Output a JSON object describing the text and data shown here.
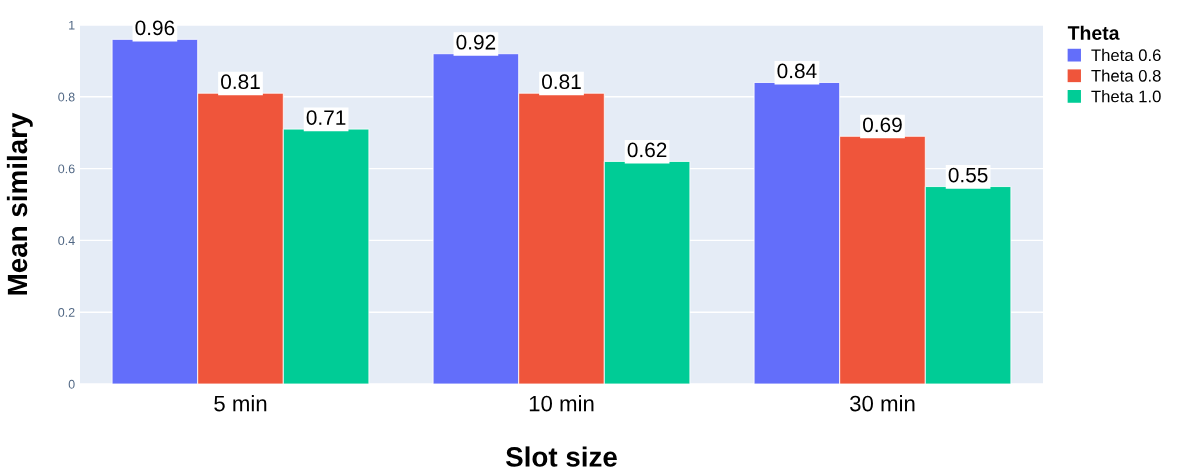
{
  "chart_data": {
    "type": "bar",
    "xlabel": "Slot size",
    "ylabel": "Mean similary",
    "legend_title": "Theta",
    "categories": [
      "5 min",
      "10 min",
      "30 min"
    ],
    "series": [
      {
        "name": "Theta 0.6",
        "color": "#636efa",
        "values": [
          0.96,
          0.92,
          0.84
        ]
      },
      {
        "name": "Theta 0.8",
        "color": "#ef553b",
        "values": [
          0.81,
          0.81,
          0.69
        ]
      },
      {
        "name": "Theta 1.0",
        "color": "#00cc96",
        "values": [
          0.71,
          0.62,
          0.55
        ]
      }
    ],
    "ylim": [
      0,
      1
    ],
    "yticks": [
      0,
      0.2,
      0.4,
      0.6,
      0.8,
      1
    ],
    "grid": "y",
    "legend": "top right",
    "data_labels": true
  }
}
